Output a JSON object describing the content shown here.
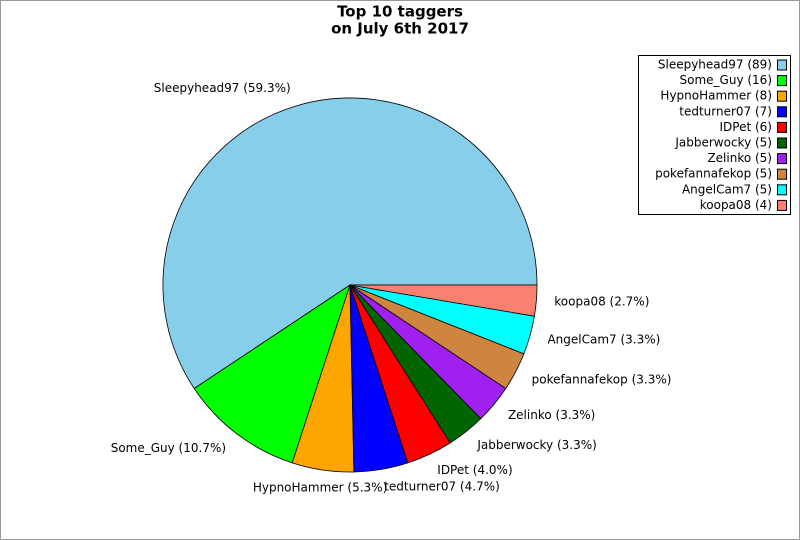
{
  "chart_data": {
    "type": "pie",
    "title": [
      "Top 10 taggers",
      "on July 6th 2017"
    ],
    "labels": [
      "Sleepyhead97 (89)",
      "Some_Guy (16)",
      "HypnoHammer (8)",
      "tedturner07 (7)",
      "IDPet (6)",
      "Jabberwocky (5)",
      "Zelinko (5)",
      "pokefannafekop (5)",
      "AngelCam7 (5)",
      "koopa08 (4)"
    ],
    "values": [
      89,
      16,
      8,
      7,
      6,
      5,
      5,
      5,
      5,
      4
    ],
    "value_labels": [
      "Sleepyhead97 (59.3%)",
      "Some_Guy (10.7%)",
      "HypnoHammer (5.3%)",
      "tedturner07 (4.7%)",
      "IDPet (4.0%)",
      "Jabberwocky (3.3%)",
      "Zelinko (3.3%)",
      "pokefannafekop (3.3%)",
      "AngelCam7 (3.3%)",
      "koopa08 (2.7%)"
    ],
    "colors": [
      "#87ceeb",
      "#00ff00",
      "#ffa500",
      "#0000ff",
      "#ff0000",
      "#006400",
      "#a020f0",
      "#cd853f",
      "#00ffff",
      "#fa8072"
    ],
    "legend": "top-right"
  }
}
